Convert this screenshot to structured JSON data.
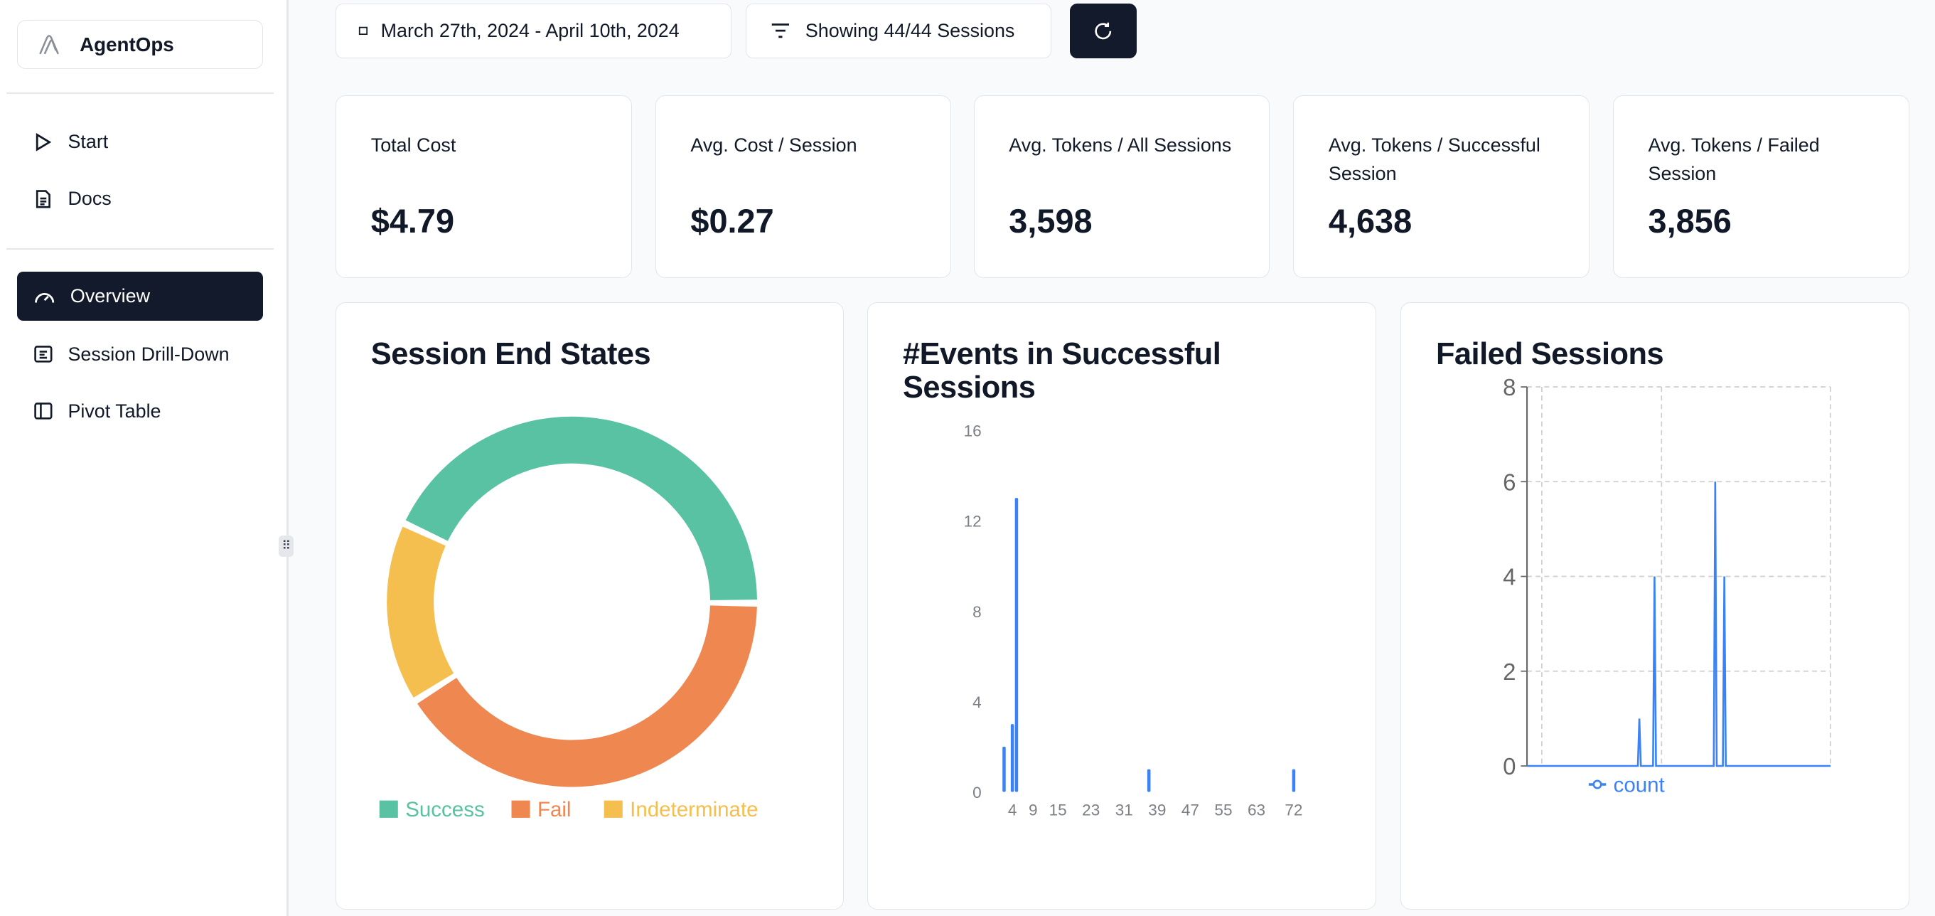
{
  "sidebar": {
    "brand": "AgentOps",
    "items": [
      {
        "label": "Start",
        "icon": "play-icon"
      },
      {
        "label": "Docs",
        "icon": "document-icon"
      },
      {
        "label": "Overview",
        "icon": "gauge-icon",
        "active": true
      },
      {
        "label": "Session Drill-Down",
        "icon": "list-icon"
      },
      {
        "label": "Pivot Table",
        "icon": "panel-icon"
      }
    ]
  },
  "toolbar": {
    "date_range": "March 27th, 2024 - April 10th, 2024",
    "filter_label": "Showing 44/44 Sessions",
    "refresh_icon": "refresh-icon"
  },
  "stats": [
    {
      "label": "Total Cost",
      "value": "$4.79"
    },
    {
      "label": "Avg. Cost / Session",
      "value": "$0.27"
    },
    {
      "label": "Avg. Tokens / All Sessions",
      "value": "3,598"
    },
    {
      "label": "Avg. Tokens / Successful Session",
      "value": "4,638"
    },
    {
      "label": "Avg. Tokens / Failed Session",
      "value": "3,856"
    }
  ],
  "colors": {
    "success": "#58c2a2",
    "fail": "#ef8751",
    "indeterminate": "#f4bf4f",
    "series": "#3b82f6",
    "active_nav": "#131a2b"
  },
  "chart_data": [
    {
      "type": "pie",
      "title": "Session End States",
      "categories": [
        "Success",
        "Fail",
        "Indeterminate"
      ],
      "values": [
        19,
        18,
        7
      ],
      "legend": "bottom"
    },
    {
      "type": "bar",
      "title": "#Events in Successful Sessions",
      "x_ticks": [
        4,
        9,
        15,
        23,
        31,
        39,
        47,
        55,
        63,
        72
      ],
      "y_ticks": [
        0,
        4,
        8,
        12,
        16
      ],
      "ylim": [
        0,
        16
      ],
      "xlim": [
        2,
        72
      ],
      "points": [
        {
          "x": 2,
          "y": 2
        },
        {
          "x": 4,
          "y": 3
        },
        {
          "x": 5,
          "y": 13
        },
        {
          "x": 37,
          "y": 1
        },
        {
          "x": 72,
          "y": 1
        }
      ],
      "grid": false
    },
    {
      "type": "line",
      "title": "Failed Sessions",
      "y_ticks": [
        0,
        2,
        4,
        6,
        8
      ],
      "ylim": [
        0,
        8
      ],
      "xlim": [
        0,
        100
      ],
      "series": [
        {
          "name": "count",
          "points": [
            {
              "x": 0,
              "y": 0
            },
            {
              "x": 37,
              "y": 1
            },
            {
              "x": 42,
              "y": 4
            },
            {
              "x": 62,
              "y": 6
            },
            {
              "x": 65,
              "y": 4
            },
            {
              "x": 100,
              "y": 0
            }
          ]
        }
      ],
      "grid": true,
      "legend": "bottom"
    }
  ]
}
